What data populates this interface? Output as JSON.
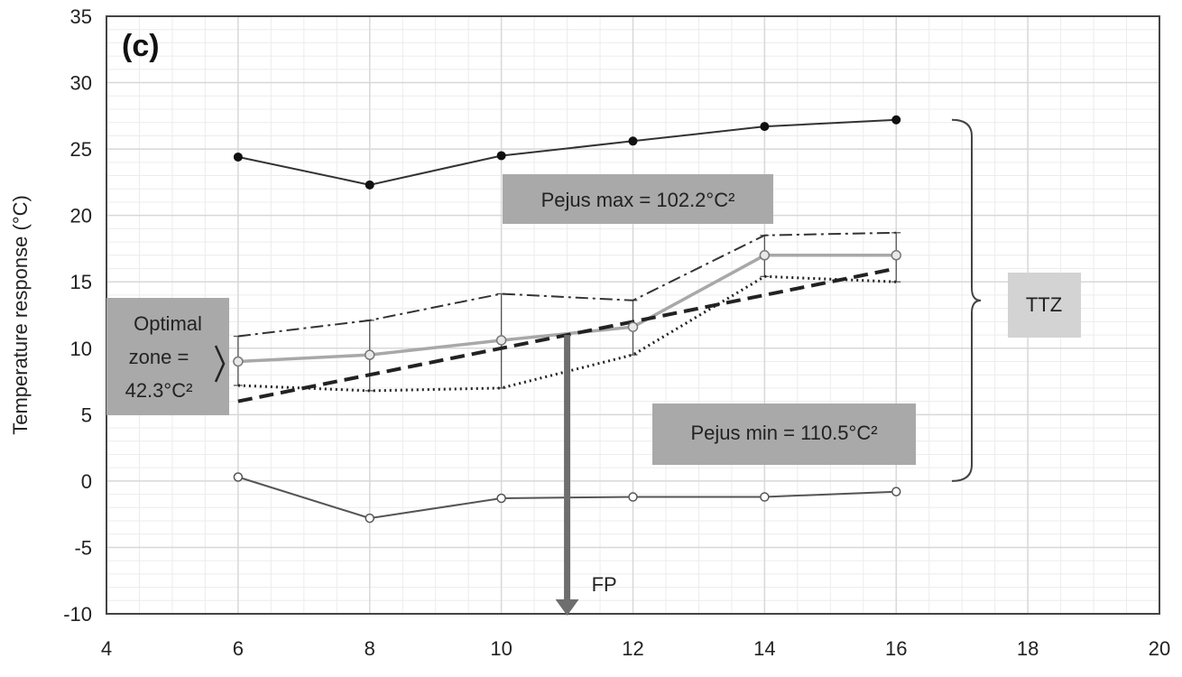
{
  "chart_data": {
    "type": "line",
    "panel_label": "(c)",
    "xlabel": "",
    "ylabel": "Temperature response (°C)",
    "xlim": [
      4,
      20
    ],
    "ylim": [
      -10,
      35
    ],
    "xticks": [
      4,
      6,
      8,
      10,
      12,
      14,
      16,
      18,
      20
    ],
    "yticks": [
      -10,
      -5,
      0,
      5,
      10,
      15,
      20,
      25,
      30,
      35
    ],
    "x": [
      6,
      8,
      10,
      12,
      14,
      16
    ],
    "grid": true,
    "series": [
      {
        "key": "ctmax",
        "style": "solid-filled-markers",
        "color": "#333333",
        "values": [
          24.4,
          22.3,
          24.5,
          25.6,
          26.7,
          27.2
        ]
      },
      {
        "key": "ctmin",
        "style": "solid-open-markers",
        "color": "#555555",
        "values": [
          0.3,
          -2.8,
          -1.3,
          -1.2,
          -1.2,
          -0.8
        ]
      },
      {
        "key": "mean",
        "style": "grey-open-markers",
        "color": "#a8a8a8",
        "values": [
          9.0,
          9.5,
          10.6,
          11.6,
          17.0,
          17.0
        ],
        "errors": [
          [
            7.2,
            10.9
          ],
          [
            6.8,
            12.1
          ],
          [
            7.0,
            14.1
          ],
          [
            9.5,
            13.6
          ],
          [
            15.4,
            18.5
          ],
          [
            15.0,
            18.7
          ]
        ]
      },
      {
        "key": "upper",
        "style": "dash-dot",
        "color": "#333333",
        "values": [
          10.9,
          12.1,
          14.1,
          13.6,
          18.5,
          18.7
        ]
      },
      {
        "key": "lower",
        "style": "dotted",
        "color": "#222222",
        "values": [
          7.2,
          6.8,
          7.0,
          9.5,
          15.4,
          15.0
        ]
      },
      {
        "key": "trend",
        "style": "dashed",
        "color": "#222222",
        "values": [
          6.0,
          8.0,
          10.0,
          12.0,
          14.0,
          16.0
        ]
      }
    ],
    "annotations": {
      "pejus_max": "Pejus max = 102.2°C²",
      "pejus_min": "Pejus min = 110.5°C²",
      "optimal_line1": "Optimal",
      "optimal_line2": "zone =",
      "optimal_line3": "42.3°C²",
      "ttz": "TTZ",
      "fp": "FP",
      "fp_x": 11,
      "fp_from_y": 11,
      "ttz_range": [
        0,
        27.2
      ]
    },
    "colors": {
      "grid": "#d8d8d8",
      "minor_grid": "#ececec",
      "annotation_box": "#a9a9a9",
      "ttz_box": "#d3d3d3",
      "arrow": "#6e6e6e"
    }
  }
}
